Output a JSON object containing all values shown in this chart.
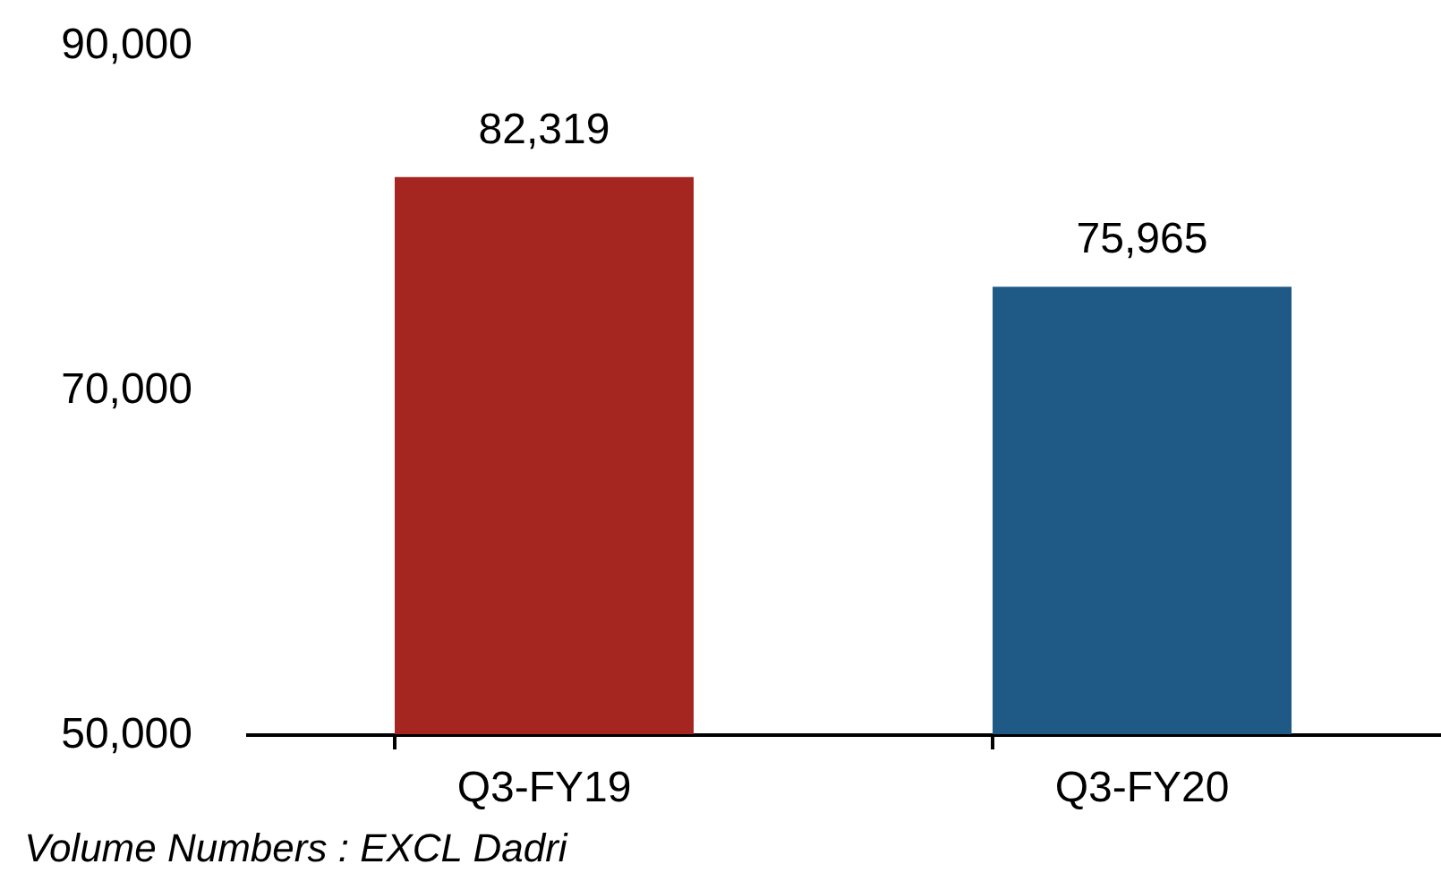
{
  "chart_data": {
    "type": "bar",
    "categories": [
      "Q3-FY19",
      "Q3-FY20"
    ],
    "values": [
      82319,
      75965
    ],
    "colors": [
      "#a52520",
      "#1f5a87"
    ],
    "ylim": [
      50000,
      90000
    ],
    "yticks": [
      {
        "value": 50000,
        "label": "50,000"
      },
      {
        "value": 70000,
        "label": "70,000"
      },
      {
        "value": 90000,
        "label": "90,000"
      }
    ],
    "grid": false,
    "legend": false,
    "value_labels": [
      "82,319",
      "75,965"
    ],
    "annotations": [
      "Volume Numbers : EXCL Dadri"
    ]
  }
}
